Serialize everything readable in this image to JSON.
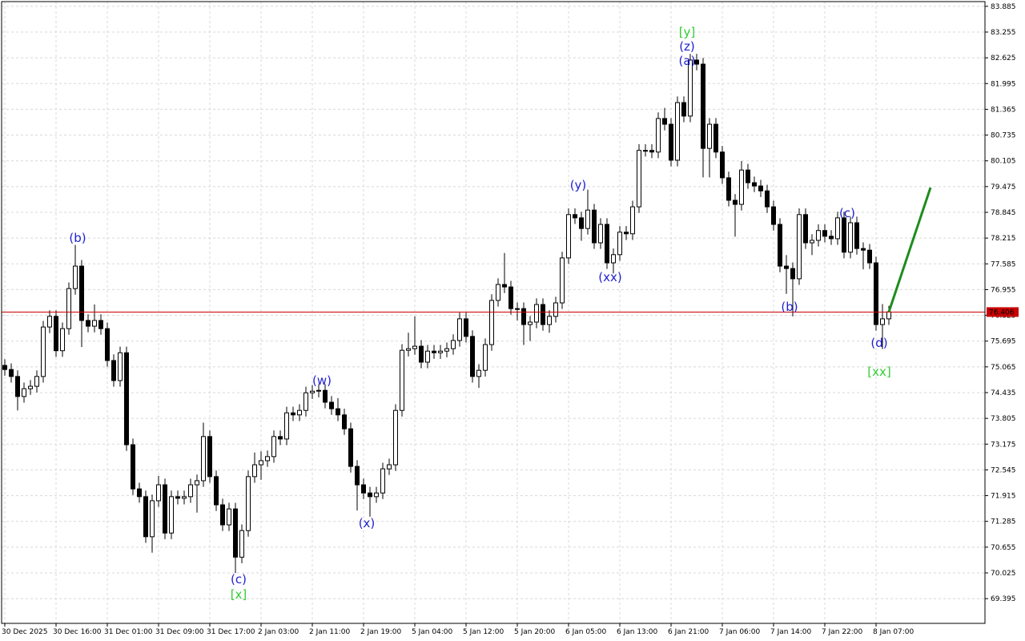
{
  "chart_data": {
    "type": "candlestick",
    "up_color": "#ffffff",
    "down_color": "#000000",
    "grid": true,
    "xlim": [
      -0.5,
      153
    ],
    "ylim": [
      68.79,
      84.0
    ],
    "xticks": [
      {
        "value": 0,
        "label": "30 Dec 2025"
      },
      {
        "value": 8,
        "label": "30 Dec 16:00"
      },
      {
        "value": 16,
        "label": "31 Dec 01:00"
      },
      {
        "value": 24,
        "label": "31 Dec 09:00"
      },
      {
        "value": 32,
        "label": "31 Dec 17:00"
      },
      {
        "value": 40,
        "label": "2 Jan 03:00"
      },
      {
        "value": 48,
        "label": "2 Jan 11:00"
      },
      {
        "value": 56,
        "label": "2 Jan 19:00"
      },
      {
        "value": 64,
        "label": "5 Jan 04:00"
      },
      {
        "value": 72,
        "label": "5 Jan 12:00"
      },
      {
        "value": 80,
        "label": "5 Jan 20:00"
      },
      {
        "value": 88,
        "label": "6 Jan 05:00"
      },
      {
        "value": 96,
        "label": "6 Jan 13:00"
      },
      {
        "value": 104,
        "label": "6 Jan 21:00"
      },
      {
        "value": 112,
        "label": "7 Jan 06:00"
      },
      {
        "value": 120,
        "label": "7 Jan 14:00"
      },
      {
        "value": 128,
        "label": "7 Jan 22:00"
      },
      {
        "value": 136,
        "label": "8 Jan 07:00"
      }
    ],
    "yticks": [
      83.885,
      83.255,
      82.625,
      81.995,
      81.365,
      80.735,
      80.105,
      79.475,
      78.845,
      78.215,
      77.585,
      76.955,
      76.325,
      75.695,
      75.065,
      74.435,
      73.805,
      73.175,
      72.545,
      71.915,
      71.285,
      70.655,
      70.025,
      69.395
    ],
    "open": [
      75.1,
      75.0,
      74.83,
      74.34,
      74.53,
      74.59,
      74.83,
      76.04,
      76.3,
      75.46,
      76.0,
      76.98,
      77.53,
      76.2,
      76.06,
      76.2,
      76.0,
      75.22,
      74.73,
      75.41,
      73.16,
      72.08,
      71.89,
      70.91,
      71.79,
      72.18,
      71.0,
      71.89,
      71.85,
      71.89,
      72.18,
      72.28,
      73.36,
      72.38,
      71.69,
      71.2,
      71.59,
      70.41,
      71.06,
      72.38,
      72.67,
      72.77,
      72.87,
      73.36,
      73.3,
      73.94,
      73.89,
      74.0,
      74.43,
      74.47,
      74.49,
      74.2,
      74.04,
      73.89,
      73.55,
      72.63,
      72.18,
      71.98,
      71.89,
      71.98,
      72.57,
      72.67,
      74.0,
      75.47,
      75.51,
      75.57,
      75.18,
      75.45,
      75.41,
      75.45,
      75.51,
      75.71,
      76.24,
      75.81,
      74.83,
      74.98,
      75.61,
      76.69,
      77.08,
      77.02,
      76.49,
      76.49,
      76.1,
      76.16,
      76.59,
      76.1,
      76.3,
      76.63,
      77.73,
      78.79,
      78.71,
      78.45,
      78.9,
      78.1,
      78.55,
      77.61,
      77.81,
      78.36,
      78.32,
      78.98,
      80.36,
      80.36,
      80.32,
      81.14,
      81.0,
      80.12,
      81.53,
      81.2,
      82.57,
      82.47,
      80.41,
      81.0,
      80.32,
      79.69,
      79.14,
      79.04,
      79.88,
      79.57,
      79.49,
      79.37,
      78.98,
      78.55,
      77.53,
      77.47,
      77.22,
      78.79,
      78.1,
      78.16,
      78.4,
      78.26,
      78.2,
      78.71,
      77.87,
      78.59,
      77.96,
      77.92,
      77.61,
      76.1,
      76.24
    ],
    "high": [
      75.25,
      75.15,
      74.98,
      74.68,
      74.74,
      74.98,
      76.19,
      76.45,
      76.45,
      76.15,
      77.13,
      78.05,
      77.68,
      76.35,
      76.59,
      76.35,
      76.15,
      75.37,
      75.56,
      75.56,
      73.31,
      72.23,
      72.04,
      71.94,
      72.4,
      72.33,
      72.04,
      72.04,
      72.04,
      72.33,
      72.43,
      73.7,
      73.51,
      72.53,
      71.84,
      71.74,
      71.74,
      71.21,
      72.53,
      72.97,
      73.0,
      73.02,
      73.51,
      73.51,
      74.09,
      74.09,
      74.15,
      74.58,
      74.62,
      74.64,
      74.64,
      74.35,
      74.3,
      74.04,
      73.7,
      72.78,
      72.33,
      72.13,
      72.13,
      72.72,
      72.82,
      74.15,
      75.62,
      75.9,
      76.3,
      75.72,
      75.6,
      75.6,
      75.6,
      75.66,
      75.86,
      76.39,
      76.39,
      75.96,
      75.13,
      75.76,
      76.84,
      77.23,
      77.85,
      77.17,
      76.64,
      76.64,
      76.31,
      76.74,
      76.74,
      76.45,
      76.78,
      77.88,
      78.94,
      78.94,
      78.86,
      79.4,
      79.05,
      78.7,
      78.7,
      77.96,
      78.51,
      78.51,
      79.13,
      80.51,
      80.51,
      80.51,
      81.29,
      81.4,
      81.15,
      81.68,
      81.68,
      82.72,
      82.72,
      82.62,
      81.15,
      81.15,
      80.47,
      79.84,
      79.29,
      80.1,
      80.03,
      79.72,
      79.64,
      79.52,
      79.13,
      78.7,
      77.8,
      77.62,
      78.94,
      78.94,
      78.31,
      78.55,
      78.55,
      78.41,
      78.86,
      78.86,
      78.74,
      78.74,
      78.11,
      78.07,
      77.76,
      76.6,
      76.56
    ],
    "low": [
      74.85,
      74.68,
      74.0,
      74.19,
      74.38,
      74.44,
      74.68,
      75.89,
      75.31,
      75.31,
      75.85,
      76.83,
      75.55,
      75.91,
      75.91,
      75.85,
      75.07,
      74.58,
      74.58,
      73.01,
      71.93,
      71.74,
      70.76,
      70.52,
      71.64,
      70.85,
      70.85,
      71.7,
      71.7,
      71.74,
      71.5,
      72.13,
      72.23,
      71.54,
      71.05,
      71.05,
      70.02,
      70.26,
      70.91,
      72.23,
      72.3,
      72.62,
      72.72,
      73.15,
      73.15,
      73.74,
      73.74,
      73.85,
      74.28,
      74.32,
      74.05,
      73.89,
      73.74,
      73.4,
      72.48,
      71.55,
      71.83,
      71.4,
      71.74,
      71.83,
      72.42,
      72.52,
      73.85,
      75.32,
      75.36,
      75.03,
      75.03,
      75.26,
      75.26,
      75.3,
      75.36,
      75.56,
      75.66,
      74.68,
      74.55,
      74.83,
      75.46,
      76.54,
      76.87,
      76.34,
      76.2,
      75.6,
      75.7,
      76.01,
      75.95,
      75.9,
      76.15,
      76.48,
      77.58,
      78.56,
      78.15,
      78.3,
      77.95,
      77.95,
      77.46,
      77.35,
      77.66,
      78.17,
      78.17,
      78.83,
      80.21,
      80.17,
      80.17,
      80.85,
      79.97,
      79.97,
      81.05,
      81.05,
      82.32,
      79.7,
      79.7,
      80.17,
      79.54,
      78.99,
      78.25,
      78.89,
      79.42,
      79.34,
      79.22,
      78.83,
      78.4,
      77.38,
      76.85,
      76.3,
      77.07,
      77.95,
      77.8,
      78.01,
      78.11,
      78.05,
      78.05,
      77.72,
      77.72,
      77.81,
      77.45,
      77.46,
      75.95,
      75.5,
      76.09
    ],
    "close": [
      75.0,
      74.83,
      74.34,
      74.53,
      74.59,
      74.83,
      76.04,
      76.3,
      75.46,
      76.0,
      76.98,
      77.53,
      76.2,
      76.06,
      76.2,
      76.0,
      75.22,
      74.73,
      75.41,
      73.16,
      72.08,
      71.89,
      70.91,
      71.79,
      72.18,
      71.0,
      71.89,
      71.85,
      71.89,
      72.18,
      72.28,
      73.36,
      72.38,
      71.69,
      71.2,
      71.59,
      70.41,
      71.06,
      72.38,
      72.67,
      72.77,
      72.87,
      73.36,
      73.3,
      73.94,
      73.89,
      74.0,
      74.43,
      74.47,
      74.49,
      74.2,
      74.04,
      73.89,
      73.55,
      72.63,
      72.18,
      71.98,
      71.89,
      71.98,
      72.57,
      72.67,
      74.0,
      75.47,
      75.51,
      75.57,
      75.18,
      75.45,
      75.41,
      75.45,
      75.51,
      75.71,
      76.24,
      75.81,
      74.83,
      74.98,
      75.61,
      76.69,
      77.08,
      77.02,
      76.49,
      76.49,
      76.1,
      76.16,
      76.59,
      76.1,
      76.3,
      76.63,
      77.73,
      78.79,
      78.71,
      78.45,
      78.9,
      78.1,
      78.55,
      77.61,
      77.81,
      78.36,
      78.32,
      78.98,
      80.36,
      80.36,
      80.32,
      81.14,
      81.0,
      80.12,
      81.53,
      81.2,
      82.57,
      82.47,
      80.41,
      81.0,
      80.32,
      79.69,
      79.14,
      79.04,
      79.88,
      79.57,
      79.49,
      79.37,
      78.98,
      78.55,
      77.53,
      77.47,
      77.22,
      78.79,
      78.1,
      78.16,
      78.4,
      78.26,
      78.2,
      78.71,
      77.87,
      78.59,
      77.96,
      77.92,
      77.61,
      76.1,
      76.24,
      76.41
    ],
    "last_price": {
      "value": 76.406,
      "color": "#c80000"
    },
    "forecast": {
      "x": [
        138,
        144.5
      ],
      "values": [
        76.41,
        79.45
      ],
      "color": "#1e8c1e"
    },
    "annotations": [
      {
        "text": "[y]",
        "color": "#32cd32"
      },
      {
        "text": "(z)",
        "color": "#1f1fd0"
      },
      {
        "text": "(a)",
        "color": "#1f1fd0"
      },
      {
        "text": "(b)",
        "color": "#1f1fd0"
      },
      {
        "text": "(c)",
        "color": "#1f1fd0"
      },
      {
        "text": "[x]",
        "color": "#32cd32"
      },
      {
        "text": "(w)",
        "color": "#1f1fd0"
      },
      {
        "text": "(x)",
        "color": "#1f1fd0"
      },
      {
        "text": "(y)",
        "color": "#1f1fd0"
      },
      {
        "text": "(xx)",
        "color": "#1f1fd0"
      },
      {
        "text": "(b)",
        "color": "#1f1fd0"
      },
      {
        "text": "(c)",
        "color": "#1f1fd0"
      },
      {
        "text": "(d)",
        "color": "#1f1fd0"
      },
      {
        "text": "[xx]",
        "color": "#32cd32"
      }
    ]
  }
}
